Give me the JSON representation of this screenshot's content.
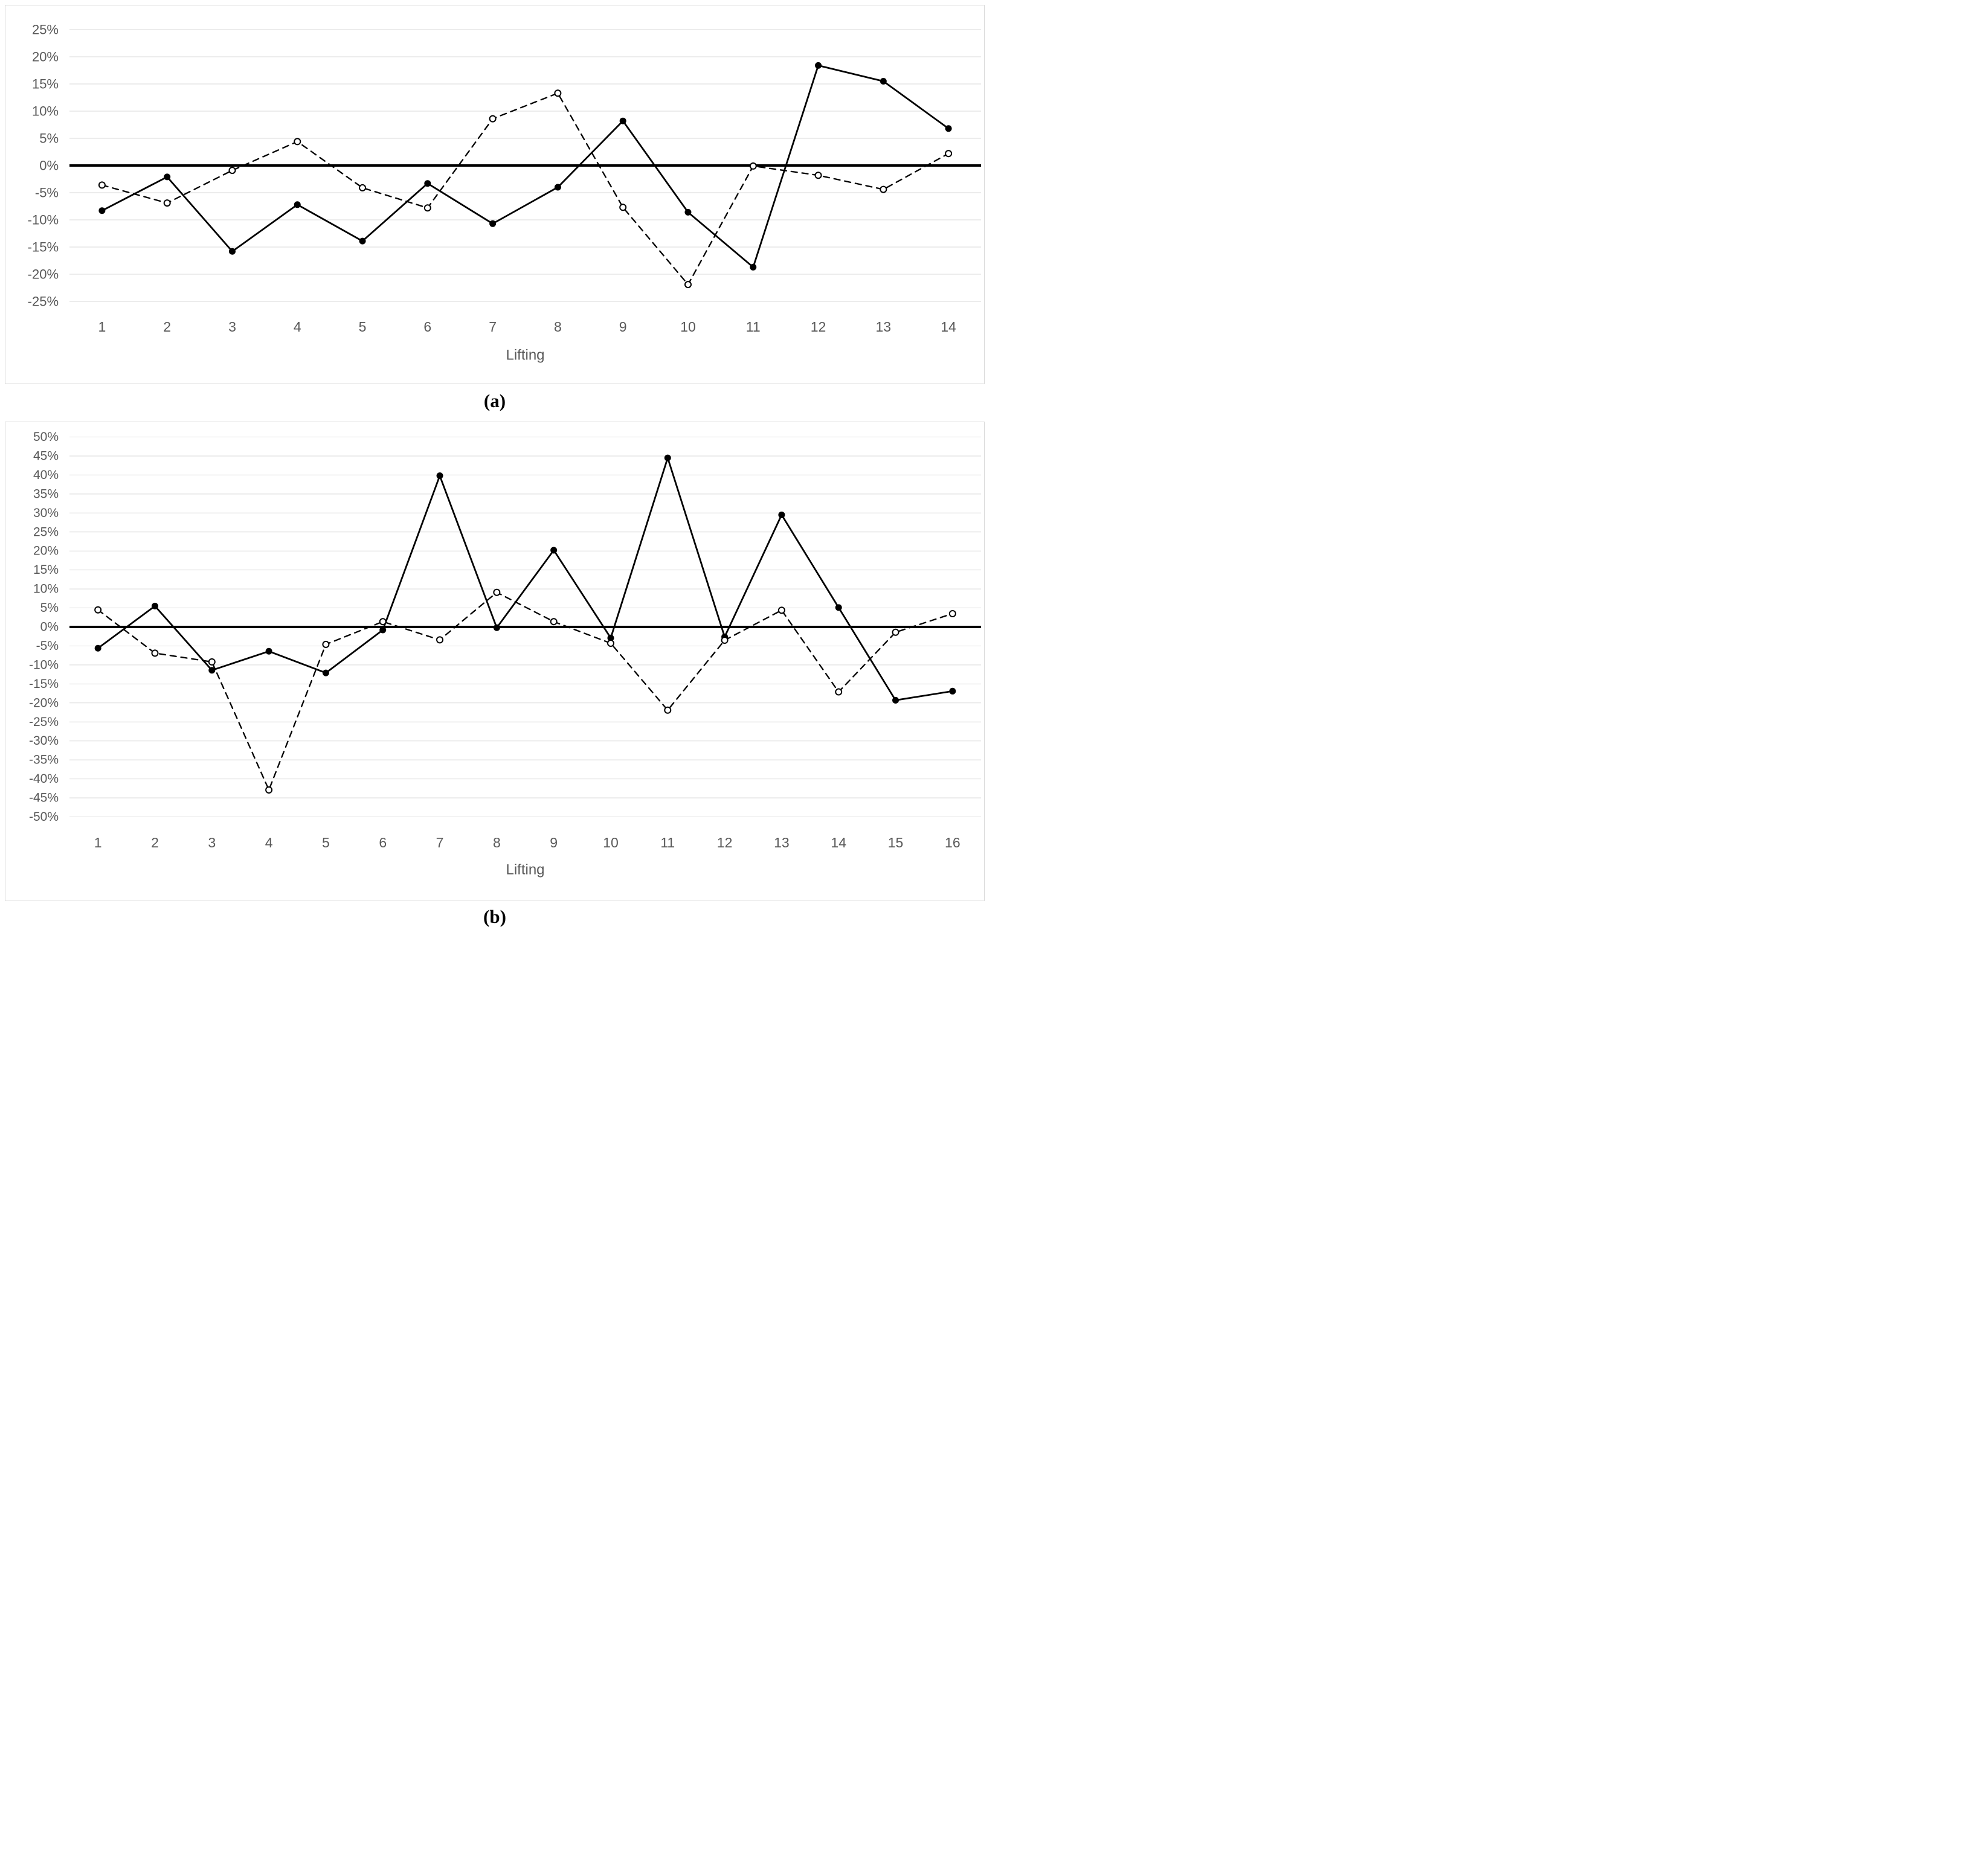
{
  "figure": {
    "captions": {
      "a": "(a)",
      "b": "(b)"
    }
  },
  "styles": {
    "background": "#ffffff",
    "panel_border": "#d9d9d9",
    "grid_color": "#d9d9d9",
    "zero_line_color": "#000000",
    "series_color": "#000000",
    "axis_text_color": "#595959",
    "open_marker_fill": "#ffffff"
  },
  "chart_data": [
    {
      "id": "a",
      "type": "line",
      "title": "",
      "xlabel": "Lifting",
      "ylabel": "",
      "grid": true,
      "legend": "none",
      "zero_line_bold": true,
      "ylim": [
        -25,
        25
      ],
      "ytick_step": 5,
      "ytick_labels": [
        "25%",
        "20%",
        "15%",
        "10%",
        "5%",
        "0%",
        "-5%",
        "-10%",
        "-15%",
        "-20%",
        "-25%"
      ],
      "categories": [
        "1",
        "2",
        "3",
        "4",
        "5",
        "6",
        "7",
        "8",
        "9",
        "10",
        "11",
        "12",
        "13",
        "14"
      ],
      "series": [
        {
          "name": "series-1-solid-filled",
          "line_style": "solid",
          "marker": "filled-circle",
          "values": [
            -8.3,
            -2.1,
            -15.8,
            -7.2,
            -13.9,
            -3.3,
            -10.7,
            -4.0,
            8.2,
            -8.6,
            -18.7,
            18.4,
            15.5,
            6.8
          ]
        },
        {
          "name": "series-2-dashed-open",
          "line_style": "dashed",
          "marker": "open-circle",
          "values": [
            -3.6,
            -6.9,
            -0.9,
            4.4,
            -4.1,
            -7.8,
            8.6,
            13.3,
            -7.7,
            -21.9,
            -0.1,
            -1.8,
            -4.4,
            2.2
          ]
        }
      ]
    },
    {
      "id": "b",
      "type": "line",
      "title": "",
      "xlabel": "Lifting",
      "ylabel": "",
      "grid": true,
      "legend": "none",
      "zero_line_bold": true,
      "ylim": [
        -50,
        50
      ],
      "ytick_step": 5,
      "ytick_labels": [
        "50%",
        "45%",
        "40%",
        "35%",
        "30%",
        "25%",
        "20%",
        "15%",
        "10%",
        "5%",
        "0%",
        "-5%",
        "-10%",
        "-15%",
        "-20%",
        "-25%",
        "-30%",
        "-35%",
        "-40%",
        "-45%",
        "-50%"
      ],
      "categories": [
        "1",
        "2",
        "3",
        "4",
        "5",
        "6",
        "7",
        "8",
        "9",
        "10",
        "11",
        "12",
        "13",
        "14",
        "15",
        "16"
      ],
      "series": [
        {
          "name": "series-1-solid-filled",
          "line_style": "solid",
          "marker": "filled-circle",
          "values": [
            -5.6,
            5.5,
            -11.4,
            -6.4,
            -12.1,
            -0.8,
            39.8,
            -0.2,
            20.2,
            -2.9,
            44.5,
            -2.6,
            29.5,
            5.1,
            -19.3,
            -16.9
          ]
        },
        {
          "name": "series-2-dashed-open",
          "line_style": "dashed",
          "marker": "open-circle",
          "values": [
            4.5,
            -6.9,
            -9.2,
            -42.9,
            -4.6,
            1.4,
            -3.4,
            9.1,
            1.4,
            -4.3,
            -21.9,
            -3.5,
            4.4,
            -17.1,
            -1.4,
            3.5
          ]
        }
      ]
    }
  ]
}
